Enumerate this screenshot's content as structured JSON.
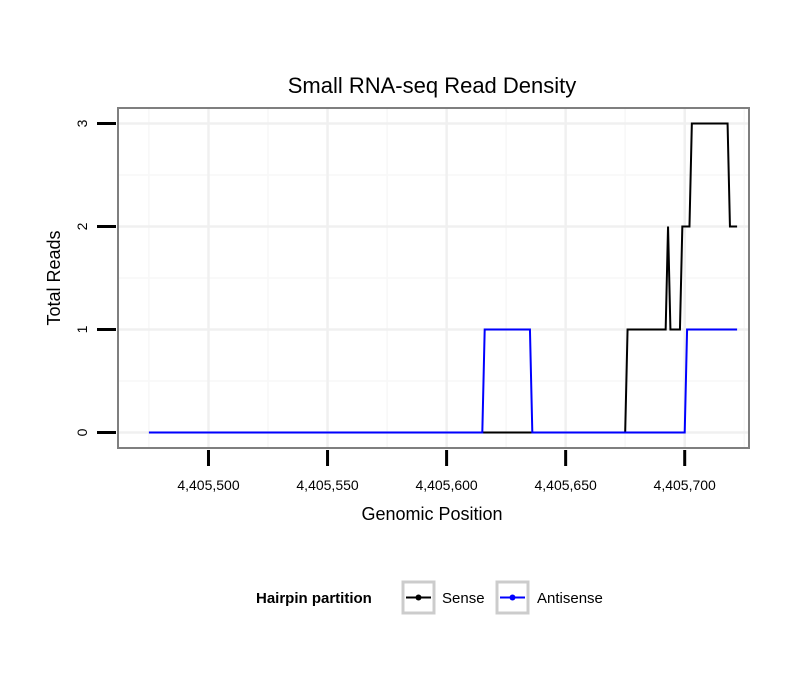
{
  "chart_data": {
    "type": "line",
    "title": "Small RNA-seq Read Density",
    "xlabel": "Genomic Position",
    "ylabel": "Total Reads",
    "xlim": [
      4405462,
      4405727
    ],
    "ylim": [
      -0.15,
      3.15
    ],
    "x_ticks": [
      4405500,
      4405550,
      4405600,
      4405650,
      4405700
    ],
    "x_tick_labels": [
      "4,405,500",
      "4,405,550",
      "4,405,600",
      "4,405,650",
      "4,405,700"
    ],
    "y_ticks": [
      0,
      1,
      2,
      3
    ],
    "y_tick_labels": [
      "0",
      "1",
      "2",
      "3"
    ],
    "grid": true,
    "legend": {
      "title": "Hairpin partition",
      "position": "bottom"
    },
    "series": [
      {
        "name": "Sense",
        "color": "#000000",
        "points": [
          [
            4405475,
            0
          ],
          [
            4405675,
            0
          ],
          [
            4405676,
            1
          ],
          [
            4405692,
            1
          ],
          [
            4405693,
            2
          ],
          [
            4405694,
            1
          ],
          [
            4405698,
            1
          ],
          [
            4405699,
            2
          ],
          [
            4405702,
            2
          ],
          [
            4405703,
            3
          ],
          [
            4405718,
            3
          ],
          [
            4405719,
            2
          ],
          [
            4405722,
            2
          ]
        ]
      },
      {
        "name": "Antisense",
        "color": "#0000ff",
        "points": [
          [
            4405475,
            0
          ],
          [
            4405615,
            0
          ],
          [
            4405616,
            1
          ],
          [
            4405635,
            1
          ],
          [
            4405636,
            0
          ],
          [
            4405700,
            0
          ],
          [
            4405701,
            1
          ],
          [
            4405722,
            1
          ]
        ]
      }
    ]
  }
}
